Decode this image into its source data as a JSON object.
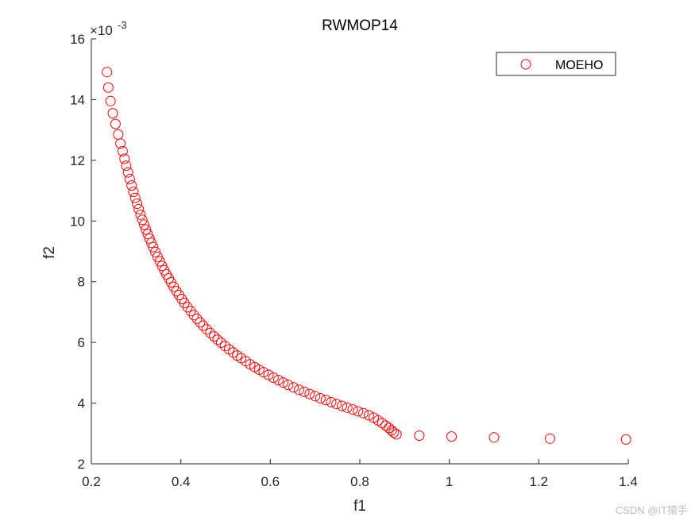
{
  "chart_data": {
    "type": "scatter",
    "title": "RWMOP14",
    "xlabel": "f1",
    "ylabel": "f2",
    "xlim": [
      0.2,
      1.4
    ],
    "ylim": [
      2,
      16
    ],
    "y_multiplier": "×10^-3",
    "y_multiplier_base": "×10",
    "y_multiplier_exp": "-3",
    "xticks": [
      0.2,
      0.4,
      0.6,
      0.8,
      1.0,
      1.2,
      1.4
    ],
    "xtick_labels": [
      "0.2",
      "0.4",
      "0.6",
      "0.8",
      "1",
      "1.2",
      "1.4"
    ],
    "yticks": [
      2,
      4,
      6,
      8,
      10,
      12,
      14,
      16
    ],
    "ytick_labels": [
      "2",
      "4",
      "6",
      "8",
      "10",
      "12",
      "14",
      "16"
    ],
    "grid": false,
    "legend_position": "top-right",
    "series": [
      {
        "name": "MOEHO",
        "color": "#ff0000",
        "marker": "open-circle",
        "points": [
          [
            0.235,
            14.91
          ],
          [
            0.238,
            14.4
          ],
          [
            0.243,
            13.95
          ],
          [
            0.248,
            13.55
          ],
          [
            0.254,
            13.2
          ],
          [
            0.26,
            12.85
          ],
          [
            0.265,
            12.55
          ],
          [
            0.27,
            12.3
          ],
          [
            0.274,
            12.05
          ],
          [
            0.278,
            11.82
          ],
          [
            0.282,
            11.6
          ],
          [
            0.286,
            11.38
          ],
          [
            0.29,
            11.17
          ],
          [
            0.294,
            10.96
          ],
          [
            0.298,
            10.76
          ],
          [
            0.302,
            10.57
          ],
          [
            0.306,
            10.39
          ],
          [
            0.31,
            10.21
          ],
          [
            0.314,
            10.04
          ],
          [
            0.318,
            9.88
          ],
          [
            0.322,
            9.72
          ],
          [
            0.326,
            9.57
          ],
          [
            0.33,
            9.42
          ],
          [
            0.334,
            9.28
          ],
          [
            0.338,
            9.14
          ],
          [
            0.343,
            8.98
          ],
          [
            0.348,
            8.82
          ],
          [
            0.353,
            8.67
          ],
          [
            0.358,
            8.52
          ],
          [
            0.363,
            8.38
          ],
          [
            0.368,
            8.24
          ],
          [
            0.373,
            8.11
          ],
          [
            0.378,
            7.98
          ],
          [
            0.384,
            7.83
          ],
          [
            0.39,
            7.69
          ],
          [
            0.396,
            7.56
          ],
          [
            0.402,
            7.43
          ],
          [
            0.408,
            7.3
          ],
          [
            0.415,
            7.16
          ],
          [
            0.422,
            7.03
          ],
          [
            0.429,
            6.9
          ],
          [
            0.436,
            6.78
          ],
          [
            0.443,
            6.66
          ],
          [
            0.45,
            6.55
          ],
          [
            0.458,
            6.43
          ],
          [
            0.466,
            6.31
          ],
          [
            0.474,
            6.2
          ],
          [
            0.482,
            6.09
          ],
          [
            0.49,
            5.99
          ],
          [
            0.499,
            5.88
          ],
          [
            0.508,
            5.77
          ],
          [
            0.517,
            5.67
          ],
          [
            0.526,
            5.57
          ],
          [
            0.535,
            5.48
          ],
          [
            0.545,
            5.38
          ],
          [
            0.555,
            5.28
          ],
          [
            0.565,
            5.19
          ],
          [
            0.575,
            5.1
          ],
          [
            0.585,
            5.02
          ],
          [
            0.596,
            4.93
          ],
          [
            0.607,
            4.84
          ],
          [
            0.618,
            4.76
          ],
          [
            0.629,
            4.68
          ],
          [
            0.64,
            4.6
          ],
          [
            0.652,
            4.52
          ],
          [
            0.664,
            4.44
          ],
          [
            0.676,
            4.37
          ],
          [
            0.688,
            4.3
          ],
          [
            0.7,
            4.23
          ],
          [
            0.712,
            4.16
          ],
          [
            0.724,
            4.1
          ],
          [
            0.736,
            4.03
          ],
          [
            0.748,
            3.97
          ],
          [
            0.76,
            3.91
          ],
          [
            0.772,
            3.85
          ],
          [
            0.784,
            3.79
          ],
          [
            0.796,
            3.73
          ],
          [
            0.808,
            3.67
          ],
          [
            0.82,
            3.6
          ],
          [
            0.831,
            3.52
          ],
          [
            0.841,
            3.43
          ],
          [
            0.85,
            3.34
          ],
          [
            0.858,
            3.26
          ],
          [
            0.865,
            3.18
          ],
          [
            0.871,
            3.1
          ],
          [
            0.876,
            3.03
          ],
          [
            0.882,
            2.97
          ],
          [
            0.933,
            2.93
          ],
          [
            1.005,
            2.9
          ],
          [
            1.1,
            2.87
          ],
          [
            1.225,
            2.83
          ],
          [
            1.395,
            2.8
          ]
        ]
      }
    ]
  },
  "watermark": "CSDN @IT猿手"
}
